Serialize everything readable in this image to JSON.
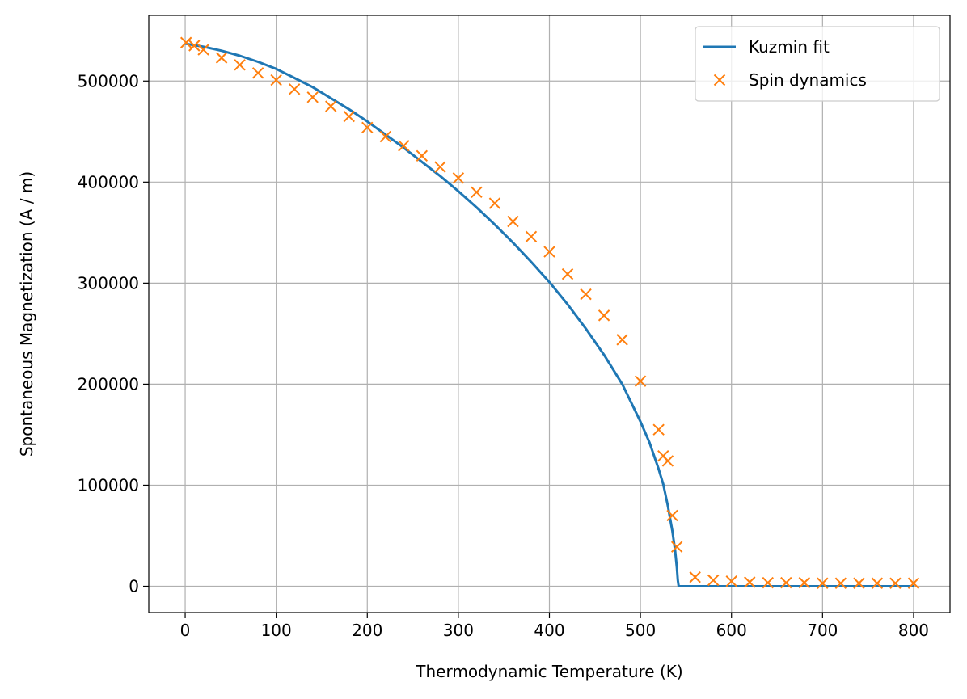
{
  "chart_data": {
    "type": "line",
    "title": "",
    "xlabel": "Thermodynamic Temperature (K)",
    "ylabel": "Spontaneous Magnetization (A / m)",
    "xlim": [
      -40,
      840
    ],
    "ylim": [
      -26000,
      565000
    ],
    "xticks": [
      0,
      100,
      200,
      300,
      400,
      500,
      600,
      700,
      800
    ],
    "yticks": [
      0,
      100000,
      200000,
      300000,
      400000,
      500000
    ],
    "grid": true,
    "legend_position": "top-right",
    "colors": {
      "fit": "#1f77b4",
      "sim": "#ff7f0e",
      "grid": "#b0b0b0"
    },
    "series": [
      {
        "name": "Kuzmin fit",
        "style": "line",
        "x": [
          0,
          20,
          40,
          60,
          80,
          100,
          120,
          140,
          160,
          180,
          200,
          220,
          240,
          260,
          280,
          300,
          320,
          340,
          360,
          380,
          400,
          420,
          440,
          460,
          480,
          500,
          510,
          520,
          525,
          530,
          535,
          538,
          540,
          541,
          542,
          550,
          600,
          650,
          700,
          750,
          800
        ],
        "y": [
          537000,
          534000,
          530000,
          525000,
          519000,
          512000,
          503000,
          494000,
          483000,
          472000,
          460000,
          447000,
          434000,
          420000,
          406000,
          391000,
          375000,
          358000,
          340000,
          321000,
          301000,
          279000,
          255000,
          229000,
          200000,
          163000,
          142000,
          116000,
          101000,
          80000,
          55000,
          36000,
          18000,
          6000,
          0,
          0,
          0,
          0,
          0,
          0,
          0
        ]
      },
      {
        "name": "Spin dynamics",
        "style": "marker-x",
        "x": [
          1,
          10,
          20,
          40,
          60,
          80,
          100,
          120,
          140,
          160,
          180,
          200,
          220,
          240,
          260,
          280,
          300,
          320,
          340,
          360,
          380,
          400,
          420,
          440,
          460,
          480,
          500,
          520,
          525,
          530,
          535,
          540,
          560,
          580,
          600,
          620,
          640,
          660,
          680,
          700,
          720,
          740,
          760,
          780,
          800
        ],
        "y": [
          538000,
          535000,
          531000,
          523000,
          516000,
          508000,
          501000,
          492000,
          484000,
          475000,
          465000,
          454000,
          445000,
          436000,
          426000,
          415000,
          404000,
          390000,
          379000,
          361000,
          346000,
          331000,
          309000,
          289000,
          268000,
          244000,
          203000,
          155000,
          129000,
          124000,
          70000,
          39000,
          9000,
          6000,
          5000,
          4000,
          3500,
          3500,
          3500,
          3000,
          3000,
          3000,
          3000,
          3000,
          3000
        ]
      }
    ]
  }
}
